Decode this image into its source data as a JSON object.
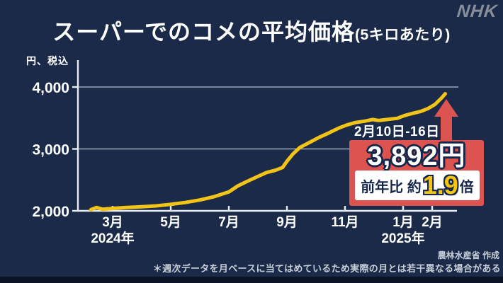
{
  "logo": "NHK",
  "header": {
    "title": "スーパーでのコメの平均価格",
    "subtitle": "(5キロあたり)"
  },
  "colors": {
    "background_navy": "#1b2a49",
    "navy_dark_text": "#16264a",
    "accent_red": "#dd534f",
    "line_yellow": "#f3c418",
    "value_yellow": "#f6c50e",
    "gridline_gray": "#9aa7ba",
    "axis_white": "#e8edf4",
    "footnote_gray": "#c8d0da",
    "logo_gray": "#878e9a",
    "bottom_band": "#0b1425"
  },
  "chart_data": {
    "type": "line",
    "title": "スーパーでのコメの平均価格(5キロあたり)",
    "ylabel": "円、税込",
    "ylim": [
      2000,
      4000
    ],
    "grid": true,
    "y_axis": {
      "unit": "円、税込",
      "ticks": [
        {
          "value": 2000,
          "label": "2,000"
        },
        {
          "value": 3000,
          "label": "3,000"
        },
        {
          "value": 4000,
          "label": "4,000"
        }
      ]
    },
    "x_axis": {
      "note": "m = months after 2024-02 (0 = 2024年2月, 12 = 2025年2月)",
      "ticks": [
        {
          "m": 1,
          "label": "3月"
        },
        {
          "m": 3,
          "label": "5月"
        },
        {
          "m": 5,
          "label": "7月"
        },
        {
          "m": 7,
          "label": "9月"
        },
        {
          "m": 9,
          "label": "11月"
        },
        {
          "m": 11,
          "label": "1月"
        },
        {
          "m": 12,
          "label": "2月"
        }
      ],
      "year_labels": [
        {
          "m": 1,
          "label": "2024年"
        },
        {
          "m": 11,
          "label": "2025年"
        }
      ]
    },
    "series": [
      {
        "name": "コメ平均価格(円)",
        "color": "#f3c418",
        "points": [
          [
            0.25,
            2020
          ],
          [
            0.45,
            2055
          ],
          [
            0.65,
            2025
          ],
          [
            1.0,
            2040
          ],
          [
            1.5,
            2055
          ],
          [
            2.0,
            2065
          ],
          [
            2.5,
            2080
          ],
          [
            3.0,
            2105
          ],
          [
            3.5,
            2135
          ],
          [
            4.0,
            2175
          ],
          [
            4.5,
            2230
          ],
          [
            5.0,
            2305
          ],
          [
            5.3,
            2400
          ],
          [
            5.65,
            2480
          ],
          [
            6.0,
            2555
          ],
          [
            6.3,
            2620
          ],
          [
            6.6,
            2655
          ],
          [
            6.85,
            2700
          ],
          [
            7.0,
            2800
          ],
          [
            7.2,
            2915
          ],
          [
            7.45,
            3025
          ],
          [
            7.8,
            3110
          ],
          [
            8.1,
            3185
          ],
          [
            8.45,
            3260
          ],
          [
            8.8,
            3340
          ],
          [
            9.05,
            3385
          ],
          [
            9.35,
            3425
          ],
          [
            9.7,
            3450
          ],
          [
            9.95,
            3475
          ],
          [
            10.15,
            3460
          ],
          [
            10.45,
            3475
          ],
          [
            10.8,
            3495
          ],
          [
            11.05,
            3540
          ],
          [
            11.3,
            3570
          ],
          [
            11.6,
            3605
          ],
          [
            11.85,
            3650
          ],
          [
            12.1,
            3720
          ],
          [
            12.25,
            3790
          ],
          [
            12.35,
            3835
          ],
          [
            12.45,
            3892
          ]
        ]
      }
    ],
    "annotation": {
      "period": "2月10日-16日",
      "value": 3892,
      "value_label": "3,892円",
      "year_on_year": "前年比 約1.9倍"
    }
  },
  "callout": {
    "date_range": "2月10日-16日",
    "price": "3,892円",
    "comparison_prefix": "前年比 約",
    "comparison_value": "1.9",
    "comparison_suffix": "倍"
  },
  "footnotes": {
    "attribution": "農林水産省 作成",
    "note": "＊週次データを月ベースに当てはめているため実際の月とは若干異なる場合がある"
  }
}
